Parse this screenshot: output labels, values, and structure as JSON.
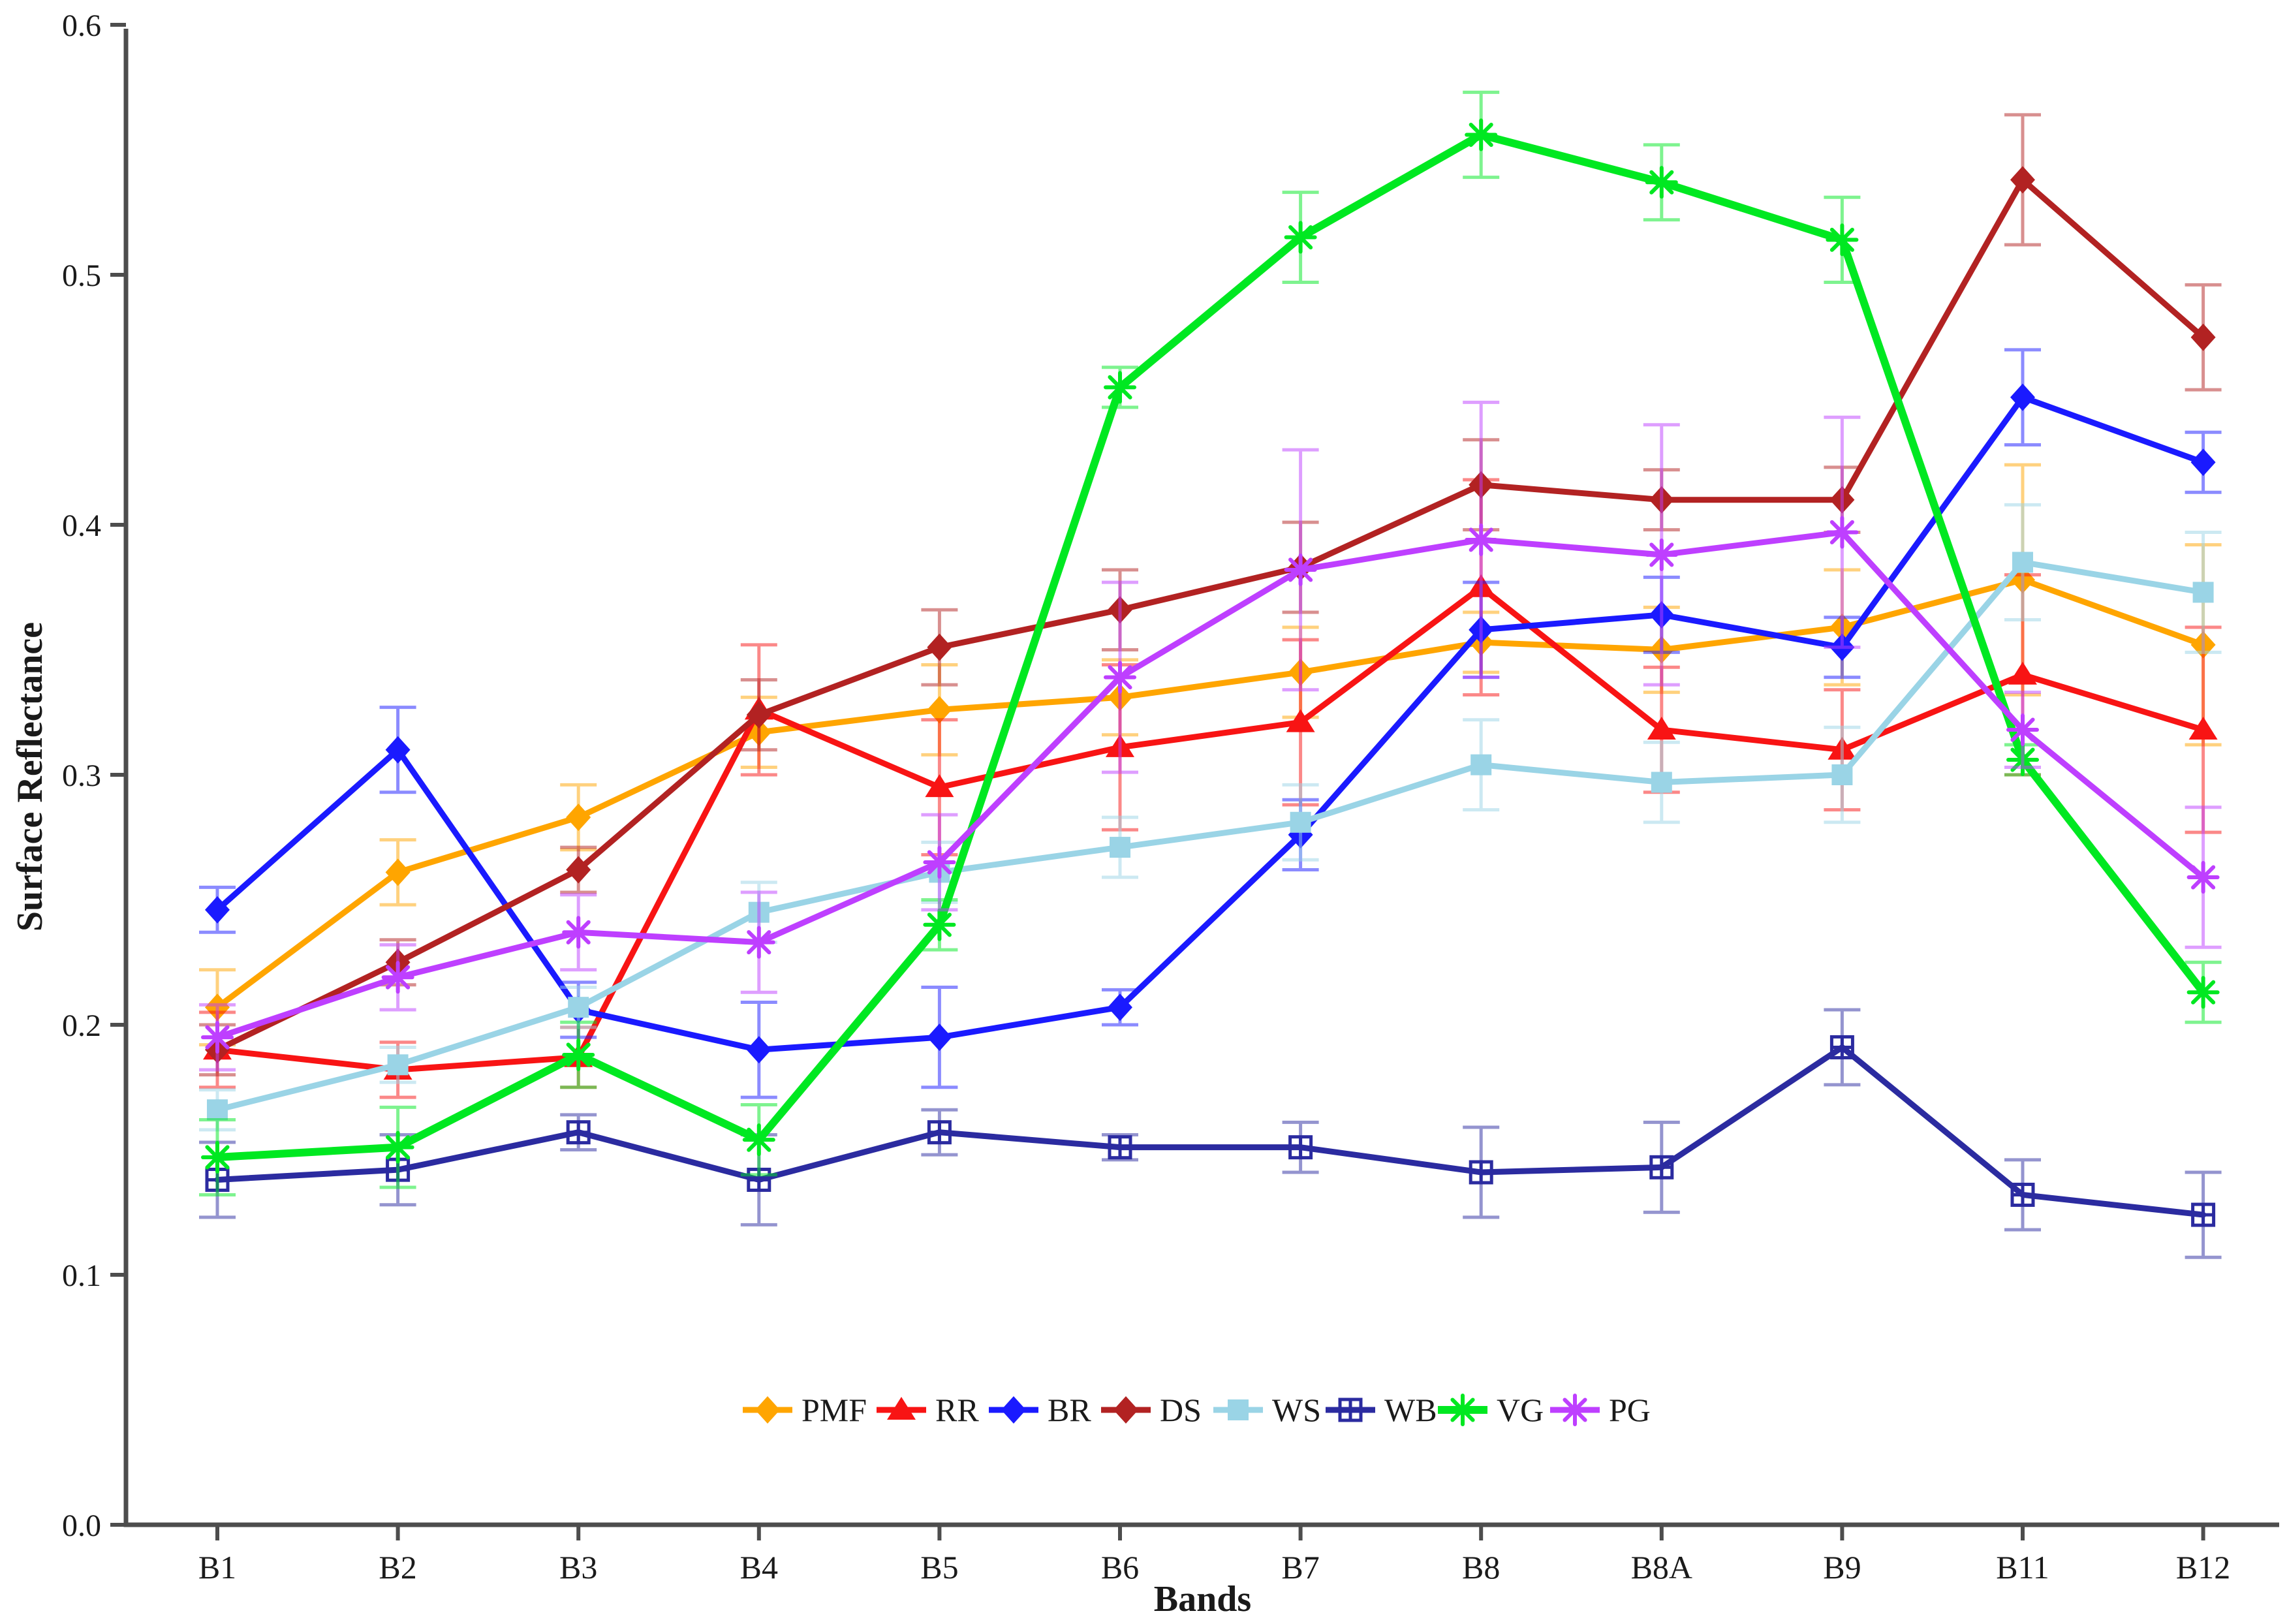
{
  "chart_data": {
    "type": "line",
    "title": "",
    "xlabel": "Bands",
    "ylabel": "Surface Reflectance",
    "categories": [
      "B1",
      "B2",
      "B3",
      "B4",
      "B5",
      "B6",
      "B7",
      "B8",
      "B8A",
      "B9",
      "B11",
      "B12"
    ],
    "ylim": [
      0.0,
      0.6
    ],
    "ytick_labels": [
      "0.0",
      "0.1",
      "0.2",
      "0.3",
      "0.4",
      "0.5",
      "0.6"
    ],
    "yticks": [
      0.0,
      0.1,
      0.2,
      0.3,
      0.4,
      0.5,
      0.6
    ],
    "grid": false,
    "legend_position": "bottom-center",
    "error_bars": true,
    "axis_color": "#4d4d4d",
    "text_color": "#1a1a1a",
    "series": [
      {
        "name": "PMF",
        "color": "#FFA500",
        "marker": "diamond",
        "values": [
          0.207,
          0.261,
          0.283,
          0.317,
          0.326,
          0.331,
          0.341,
          0.353,
          0.35,
          0.359,
          0.378,
          0.352
        ],
        "errors": [
          0.015,
          0.013,
          0.013,
          0.014,
          0.018,
          0.015,
          0.018,
          0.012,
          0.017,
          0.023,
          0.046,
          0.04
        ]
      },
      {
        "name": "RR",
        "color": "#F81414",
        "marker": "triangle",
        "values": [
          0.19,
          0.182,
          0.187,
          0.326,
          0.295,
          0.311,
          0.321,
          0.375,
          0.318,
          0.31,
          0.34,
          0.318
        ],
        "errors": [
          0.015,
          0.011,
          0.012,
          0.026,
          0.027,
          0.033,
          0.033,
          0.043,
          0.025,
          0.024,
          0.04,
          0.041
        ]
      },
      {
        "name": "BR",
        "color": "#1A1AFF",
        "marker": "diamond",
        "values": [
          0.246,
          0.31,
          0.206,
          0.19,
          0.195,
          0.207,
          0.276,
          0.358,
          0.364,
          0.351,
          0.451,
          0.425
        ],
        "errors": [
          0.009,
          0.017,
          0.011,
          0.019,
          0.02,
          0.007,
          0.014,
          0.019,
          0.015,
          0.012,
          0.019,
          0.012
        ]
      },
      {
        "name": "DS",
        "color": "#B22222",
        "marker": "diamond",
        "values": [
          0.19,
          0.225,
          0.262,
          0.324,
          0.351,
          0.366,
          0.383,
          0.416,
          0.41,
          0.41,
          0.538,
          0.475
        ],
        "errors": [
          0.01,
          0.009,
          0.009,
          0.014,
          0.015,
          0.016,
          0.018,
          0.018,
          0.012,
          0.013,
          0.026,
          0.021
        ]
      },
      {
        "name": "WS",
        "color": "#9AD4E6",
        "marker": "square",
        "values": [
          0.166,
          0.184,
          0.207,
          0.245,
          0.261,
          0.271,
          0.281,
          0.304,
          0.297,
          0.3,
          0.385,
          0.373
        ],
        "errors": [
          0.008,
          0.007,
          0.008,
          0.012,
          0.012,
          0.012,
          0.015,
          0.018,
          0.016,
          0.019,
          0.023,
          0.024
        ]
      },
      {
        "name": "WB",
        "color": "#2B2BA0",
        "marker": "square-plus",
        "values": [
          0.138,
          0.142,
          0.157,
          0.138,
          0.157,
          0.151,
          0.151,
          0.141,
          0.143,
          0.191,
          0.132,
          0.124
        ],
        "errors": [
          0.015,
          0.014,
          0.007,
          0.018,
          0.009,
          0.005,
          0.01,
          0.018,
          0.018,
          0.015,
          0.014,
          0.017
        ]
      },
      {
        "name": "VG",
        "color": "#00E821",
        "marker": "asterisk",
        "values": [
          0.147,
          0.151,
          0.188,
          0.154,
          0.24,
          0.455,
          0.515,
          0.556,
          0.537,
          0.514,
          0.306,
          0.213
        ],
        "errors": [
          0.015,
          0.016,
          0.013,
          0.014,
          0.01,
          0.008,
          0.018,
          0.017,
          0.015,
          0.017,
          0.006,
          0.012
        ]
      },
      {
        "name": "PG",
        "color": "#BE3FFF",
        "marker": "asterisk",
        "values": [
          0.195,
          0.219,
          0.237,
          0.233,
          0.265,
          0.339,
          0.382,
          0.394,
          0.388,
          0.397,
          0.318,
          0.259
        ],
        "errors": [
          0.013,
          0.013,
          0.015,
          0.02,
          0.019,
          0.038,
          0.048,
          0.055,
          0.052,
          0.046,
          0.015,
          0.028
        ]
      }
    ]
  }
}
